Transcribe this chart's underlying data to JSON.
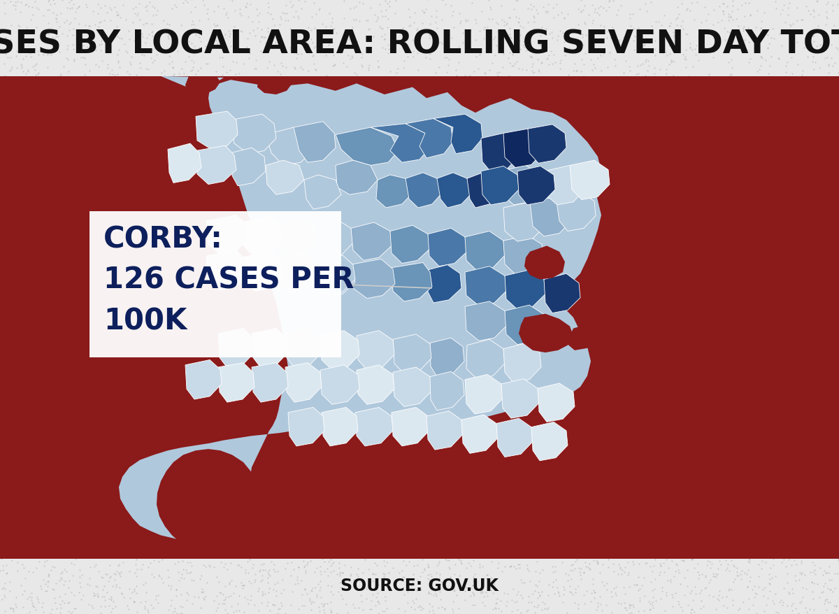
{
  "title": "CASES BY LOCAL AREA: ROLLING SEVEN DAY TOTAL",
  "source": "SOURCE: GOV.UK",
  "title_fontsize": 34,
  "title_color": "#111111",
  "source_fontsize": 17,
  "background_color": "#e8e8e8",
  "sea_color": "#8b1a1a",
  "annotation_label": "CORBY:\n126 CASES PER\n100K",
  "annotation_text_color": "#0d1f5c",
  "annotation_box_color": "#ffffff",
  "dark_red_color": "#8b1a1a"
}
